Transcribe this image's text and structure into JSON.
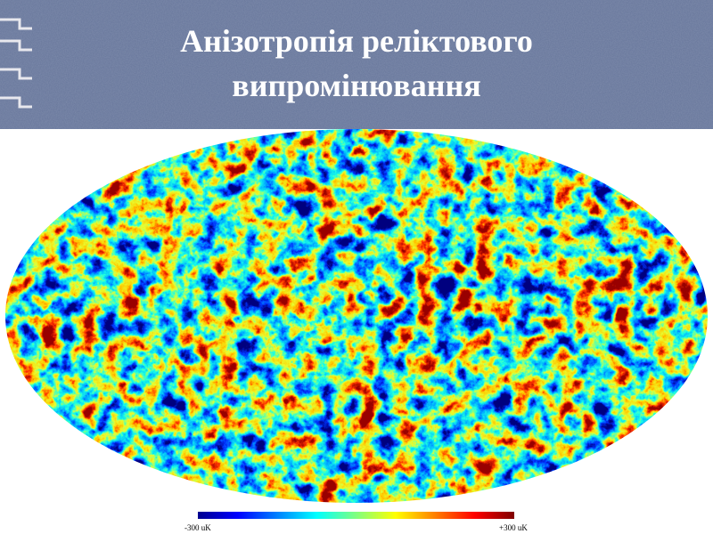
{
  "header": {
    "title_lines": [
      "Анізотропія реліктового",
      "випромінювання"
    ]
  },
  "colorbar": {
    "min_label": "-300 uK",
    "max_label": "+300 uK"
  }
}
